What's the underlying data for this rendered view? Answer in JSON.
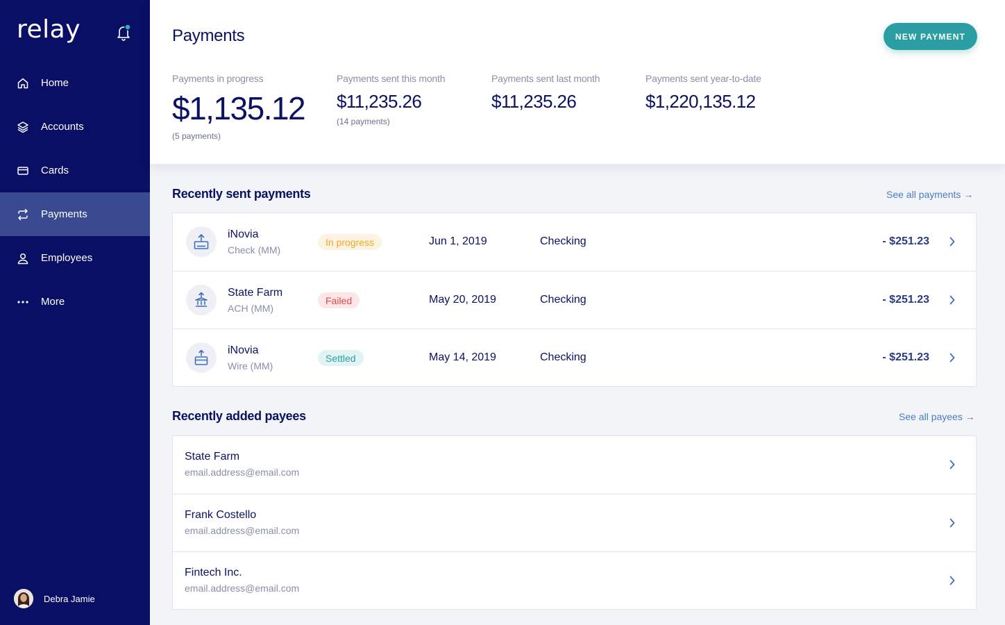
{
  "sidebar": {
    "logo": "relay",
    "nav": [
      {
        "label": "Home",
        "icon": "home-icon"
      },
      {
        "label": "Accounts",
        "icon": "layers-icon"
      },
      {
        "label": "Cards",
        "icon": "card-icon"
      },
      {
        "label": "Payments",
        "icon": "transfer-icon",
        "active": true
      },
      {
        "label": "Employees",
        "icon": "person-icon"
      },
      {
        "label": "More",
        "icon": "more-dots-icon"
      }
    ],
    "user": {
      "name": "Debra Jamie"
    }
  },
  "header": {
    "title": "Payments",
    "new_payment_label": "NEW PAYMENT",
    "stats": [
      {
        "label": "Payments in progress",
        "value": "$1,135.12",
        "sub": "(5 payments)"
      },
      {
        "label": "Payments sent this month",
        "value": "$11,235.26",
        "sub": "(14 payments)"
      },
      {
        "label": "Payments sent last month",
        "value": "$11,235.26"
      },
      {
        "label": "Payments sent year-to-date",
        "value": "$1,220,135.12"
      }
    ]
  },
  "recent_payments": {
    "title": "Recently sent payments",
    "see_all": "See all payments →",
    "rows": [
      {
        "name": "iNovia",
        "method": "Check (MM)",
        "status": "In progress",
        "date": "Jun 1, 2019",
        "account": "Checking",
        "amount": "- $251.23",
        "icon": "check-upload-icon"
      },
      {
        "name": "State Farm",
        "method": "ACH (MM)",
        "status": "Failed",
        "date": "May 20, 2019",
        "account": "Checking",
        "amount": "- $251.23",
        "icon": "bank-upload-icon"
      },
      {
        "name": "iNovia",
        "method": "Wire (MM)",
        "status": "Settled",
        "date": "May 14, 2019",
        "account": "Checking",
        "amount": "- $251.23",
        "icon": "wire-upload-icon"
      }
    ]
  },
  "recent_payees": {
    "title": "Recently added payees",
    "see_all": "See all payees →",
    "rows": [
      {
        "name": "State Farm",
        "email": "email.address@email.com"
      },
      {
        "name": "Frank Costello",
        "email": "email.address@email.com"
      },
      {
        "name": "Fintech Inc.",
        "email": "email.address@email.com"
      }
    ]
  },
  "colors": {
    "sidebar": "#0a0f66",
    "sidebar_active": "#3a4a91",
    "accent": "#2b9ea3",
    "link": "#4a7cc4",
    "in_progress": "#f0a623",
    "failed": "#e04848",
    "settled": "#2b9ea3"
  }
}
